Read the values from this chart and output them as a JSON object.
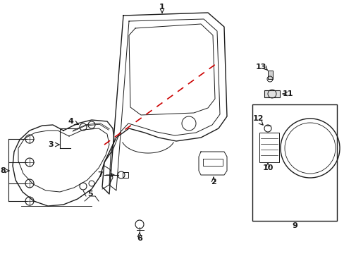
{
  "bg_color": "#ffffff",
  "lc": "#1a1a1a",
  "red_dash": "#cc0000",
  "figsize": [
    4.89,
    3.6
  ],
  "dpi": 100
}
